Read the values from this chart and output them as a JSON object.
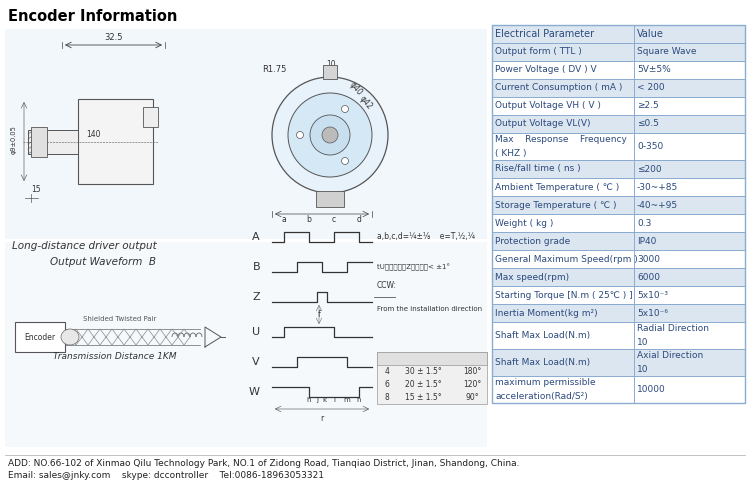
{
  "title": "Encoder Information",
  "table_header": [
    "Electrical Parameter",
    "Value"
  ],
  "table_rows": [
    [
      "Output form ( TTL )",
      "Square Wave"
    ],
    [
      "Power Voltage ( DV ) V",
      "5V±5%"
    ],
    [
      "Current Consumption ( mA )",
      "< 200"
    ],
    [
      "Output Voltage VH ( V )",
      "≥2.5"
    ],
    [
      "Output Voltage VL(V)",
      "≤0.5"
    ],
    [
      "Max    Response    Frequency\n( KHZ )",
      "0-350"
    ],
    [
      "Rise/fall time ( ns )",
      "≤200"
    ],
    [
      "Ambient Temperature ( ℃ )",
      "-30~+85"
    ],
    [
      "Storage Temperature ( ℃ )",
      "-40~+95"
    ],
    [
      "Weight ( kg )",
      "0.3"
    ],
    [
      "Protection grade",
      "IP40"
    ],
    [
      "General Maximum Speed(rpm )",
      "3000"
    ],
    [
      "Max speed(rpm)",
      "6000"
    ],
    [
      "Starting Torque [N.m ( 25℃ ) ]",
      "5x10⁻³"
    ],
    [
      "Inertia Moment(kg m²)",
      "5x10⁻⁶"
    ],
    [
      "Shaft Max Load(N.m)",
      "Radial Direction\n10"
    ],
    [
      "Shaft Max Load(N.m)",
      "Axial Direction\n10"
    ],
    [
      "maximum permissible\nacceleration(Rad/S²)",
      "10000"
    ]
  ],
  "footer_line1": "ADD: NO.66-102 of Xinmao Qilu Technology Park, NO.1 of Zidong Road, Tianqiao District, Jinan, Shandong, China.",
  "footer_line2": "Email: sales@jnky.com    skype: dccontroller    Tel:0086-18963053321",
  "bg_color": "#ffffff",
  "table_bg_even": "#dce6f1",
  "table_bg_odd": "#ffffff",
  "table_border": "#8aaccf",
  "table_header_bg": "#dce6f1",
  "text_color": "#2c4a7c",
  "title_color": "#000000",
  "left_panel_bg": "#dce9f5"
}
